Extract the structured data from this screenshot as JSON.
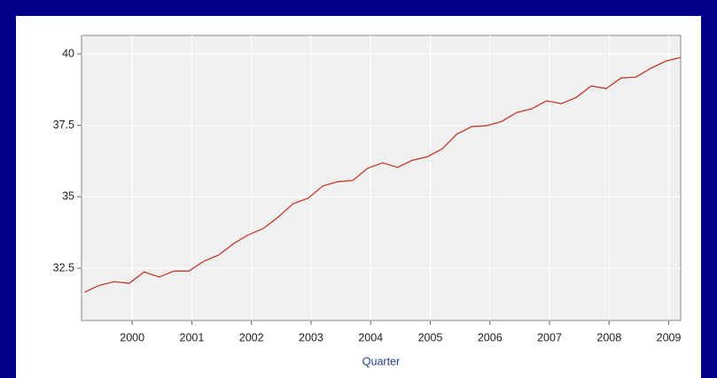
{
  "chart_data": {
    "type": "line",
    "x_label": "Quarter",
    "x": [
      1999.2,
      1999.45,
      1999.7,
      1999.95,
      2000.2,
      2000.45,
      2000.7,
      2000.95,
      2001.2,
      2001.45,
      2001.7,
      2001.95,
      2002.2,
      2002.45,
      2002.7,
      2002.95,
      2003.2,
      2003.45,
      2003.7,
      2003.95,
      2004.2,
      2004.45,
      2004.7,
      2004.95,
      2005.2,
      2005.45,
      2005.7,
      2005.95,
      2006.2,
      2006.45,
      2006.7,
      2006.95,
      2007.2,
      2007.45,
      2007.7,
      2007.95,
      2008.2,
      2008.45,
      2008.7,
      2008.95,
      2009.2
    ],
    "series": [
      {
        "color": "#c0392b",
        "values": [
          31.66,
          31.9,
          32.03,
          31.97,
          32.37,
          32.19,
          32.4,
          32.4,
          32.74,
          32.96,
          33.36,
          33.67,
          33.89,
          34.29,
          34.76,
          34.95,
          35.38,
          35.53,
          35.57,
          36.0,
          36.19,
          36.03,
          36.28,
          36.4,
          36.68,
          37.2,
          37.46,
          37.49,
          37.64,
          37.95,
          38.08,
          38.36,
          38.26,
          38.48,
          38.88,
          38.79,
          39.16,
          39.19,
          39.5,
          39.75,
          39.88
        ]
      }
    ],
    "xlim": [
      1999.15,
      2009.2
    ],
    "xticks": [
      2000,
      2001,
      2002,
      2003,
      2004,
      2005,
      2006,
      2007,
      2008,
      2009
    ],
    "ylim": [
      30.67,
      40.65
    ],
    "yticks": [
      32.5,
      35,
      37.5,
      40
    ],
    "grid": true
  }
}
